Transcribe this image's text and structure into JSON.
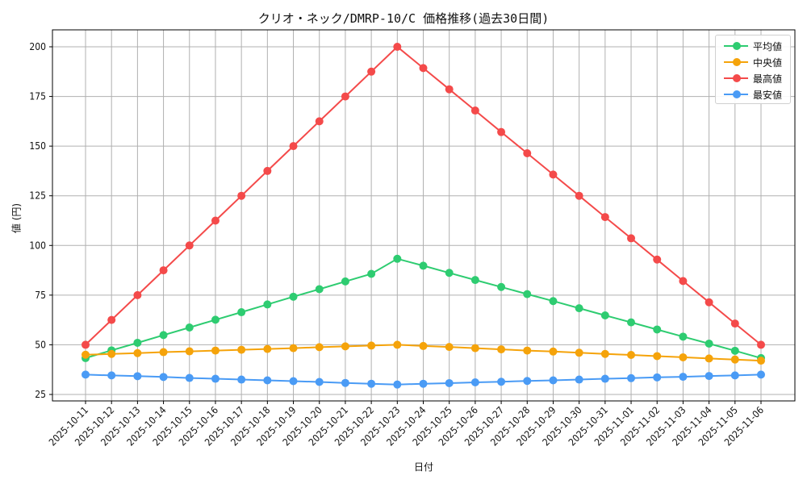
{
  "chart_data": {
    "type": "line",
    "title": "クリオ・ネック/DMRP-10/C 価格推移(過去30日間)",
    "xlabel": "日付",
    "ylabel": "値 (円)",
    "ylim": [
      22,
      208
    ],
    "yticks": [
      25,
      50,
      75,
      100,
      125,
      150,
      175,
      200
    ],
    "grid": true,
    "legend_position": "upper right",
    "x": [
      "2025-10-11",
      "2025-10-12",
      "2025-10-13",
      "2025-10-14",
      "2025-10-15",
      "2025-10-16",
      "2025-10-17",
      "2025-10-18",
      "2025-10-19",
      "2025-10-20",
      "2025-10-21",
      "2025-10-22",
      "2025-10-23",
      "2025-10-24",
      "2025-10-25",
      "2025-10-26",
      "2025-10-27",
      "2025-10-28",
      "2025-10-29",
      "2025-10-30",
      "2025-10-31",
      "2025-11-01",
      "2025-11-02",
      "2025-11-03",
      "2025-11-04",
      "2025-11-05",
      "2025-11-06"
    ],
    "series": [
      {
        "name": "平均値",
        "color": "#2ecc71",
        "values": [
          43.3,
          47.2,
          51.0,
          54.9,
          58.7,
          62.6,
          66.4,
          70.3,
          74.2,
          78.0,
          81.9,
          85.7,
          93.3,
          89.8,
          86.2,
          82.6,
          79.1,
          75.5,
          72.0,
          68.4,
          64.8,
          61.3,
          57.7,
          54.1,
          50.6,
          47.0,
          43.3
        ]
      },
      {
        "name": "中央値",
        "color": "#f5a30a",
        "values": [
          45.0,
          45.4,
          45.8,
          46.3,
          46.7,
          47.1,
          47.5,
          47.9,
          48.3,
          48.8,
          49.2,
          49.6,
          50.0,
          49.4,
          48.9,
          48.3,
          47.7,
          47.1,
          46.6,
          46.0,
          45.4,
          44.9,
          44.3,
          43.7,
          43.1,
          42.6,
          42.0
        ]
      },
      {
        "name": "最高値",
        "color": "#f44a4a",
        "values": [
          50.0,
          62.5,
          75.0,
          87.5,
          100.0,
          112.5,
          125.0,
          137.5,
          150.0,
          162.5,
          175.0,
          187.5,
          200.0,
          189.3,
          178.6,
          167.9,
          157.1,
          146.4,
          135.7,
          125.0,
          114.3,
          103.6,
          92.9,
          82.1,
          71.4,
          60.7,
          50.0
        ]
      },
      {
        "name": "最安値",
        "color": "#4a9bf5",
        "values": [
          35.0,
          34.6,
          34.2,
          33.8,
          33.3,
          32.9,
          32.5,
          32.1,
          31.7,
          31.3,
          30.8,
          30.4,
          30.0,
          30.4,
          30.7,
          31.1,
          31.4,
          31.8,
          32.1,
          32.5,
          32.9,
          33.2,
          33.6,
          33.9,
          34.3,
          34.6,
          35.0
        ]
      }
    ]
  }
}
